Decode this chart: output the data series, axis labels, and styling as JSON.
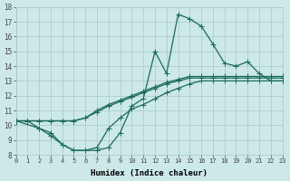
{
  "xlabel": "Humidex (Indice chaleur)",
  "xlim": [
    0,
    23
  ],
  "ylim": [
    8,
    18
  ],
  "xticks": [
    0,
    1,
    2,
    3,
    4,
    5,
    6,
    7,
    8,
    9,
    10,
    11,
    12,
    13,
    14,
    15,
    16,
    17,
    18,
    19,
    20,
    21,
    22,
    23
  ],
  "yticks": [
    8,
    9,
    10,
    11,
    12,
    13,
    14,
    15,
    16,
    17,
    18
  ],
  "bg_color": "#cce8e8",
  "line_color": "#1a6b5a",
  "grid_color": "#a8c8c8",
  "marker": "+",
  "markersize": 4,
  "linewidth": 0.9,
  "line1_x": [
    0,
    1,
    2,
    3,
    4,
    5,
    6,
    7,
    8,
    9,
    10,
    11,
    12,
    13,
    14,
    15,
    16,
    17,
    18,
    19,
    20,
    21,
    22,
    23
  ],
  "line1_y": [
    10.3,
    10.3,
    10.3,
    10.3,
    10.3,
    10.3,
    10.5,
    11.0,
    11.4,
    11.7,
    12.0,
    12.3,
    12.6,
    12.9,
    13.1,
    13.3,
    13.3,
    13.3,
    13.3,
    13.3,
    13.3,
    13.3,
    13.3,
    13.3
  ],
  "line2_x": [
    0,
    1,
    2,
    3,
    4,
    5,
    6,
    7,
    8,
    9,
    10,
    11,
    12,
    13,
    14,
    15,
    16,
    17,
    18,
    19,
    20,
    21,
    22,
    23
  ],
  "line2_y": [
    10.3,
    10.3,
    10.3,
    10.3,
    10.3,
    10.3,
    10.5,
    10.9,
    11.3,
    11.6,
    11.9,
    12.2,
    12.5,
    12.8,
    13.0,
    13.2,
    13.2,
    13.2,
    13.2,
    13.2,
    13.2,
    13.2,
    13.2,
    13.2
  ],
  "line3_x": [
    0,
    1,
    2,
    3,
    4,
    5,
    6,
    7,
    8,
    9,
    10,
    11,
    12,
    13,
    14,
    15,
    16,
    17,
    18,
    19,
    20,
    21,
    22,
    23
  ],
  "line3_y": [
    10.3,
    10.3,
    9.8,
    9.5,
    8.7,
    8.3,
    8.3,
    8.3,
    8.5,
    9.5,
    11.3,
    11.8,
    15.0,
    13.5,
    17.5,
    17.2,
    16.7,
    15.5,
    14.2,
    14.0,
    14.3,
    13.5,
    13.0,
    13.0
  ],
  "line4_x": [
    0,
    2,
    3,
    4,
    5,
    6,
    7,
    8,
    9,
    10,
    11,
    12,
    13,
    14,
    15,
    16,
    17,
    18,
    19,
    20,
    21,
    22,
    23
  ],
  "line4_y": [
    10.3,
    9.8,
    9.3,
    8.7,
    8.3,
    8.3,
    8.5,
    9.8,
    10.5,
    11.1,
    11.4,
    11.8,
    12.2,
    12.5,
    12.8,
    13.0,
    13.0,
    13.0,
    13.0,
    13.0,
    13.0,
    13.0,
    13.0
  ]
}
